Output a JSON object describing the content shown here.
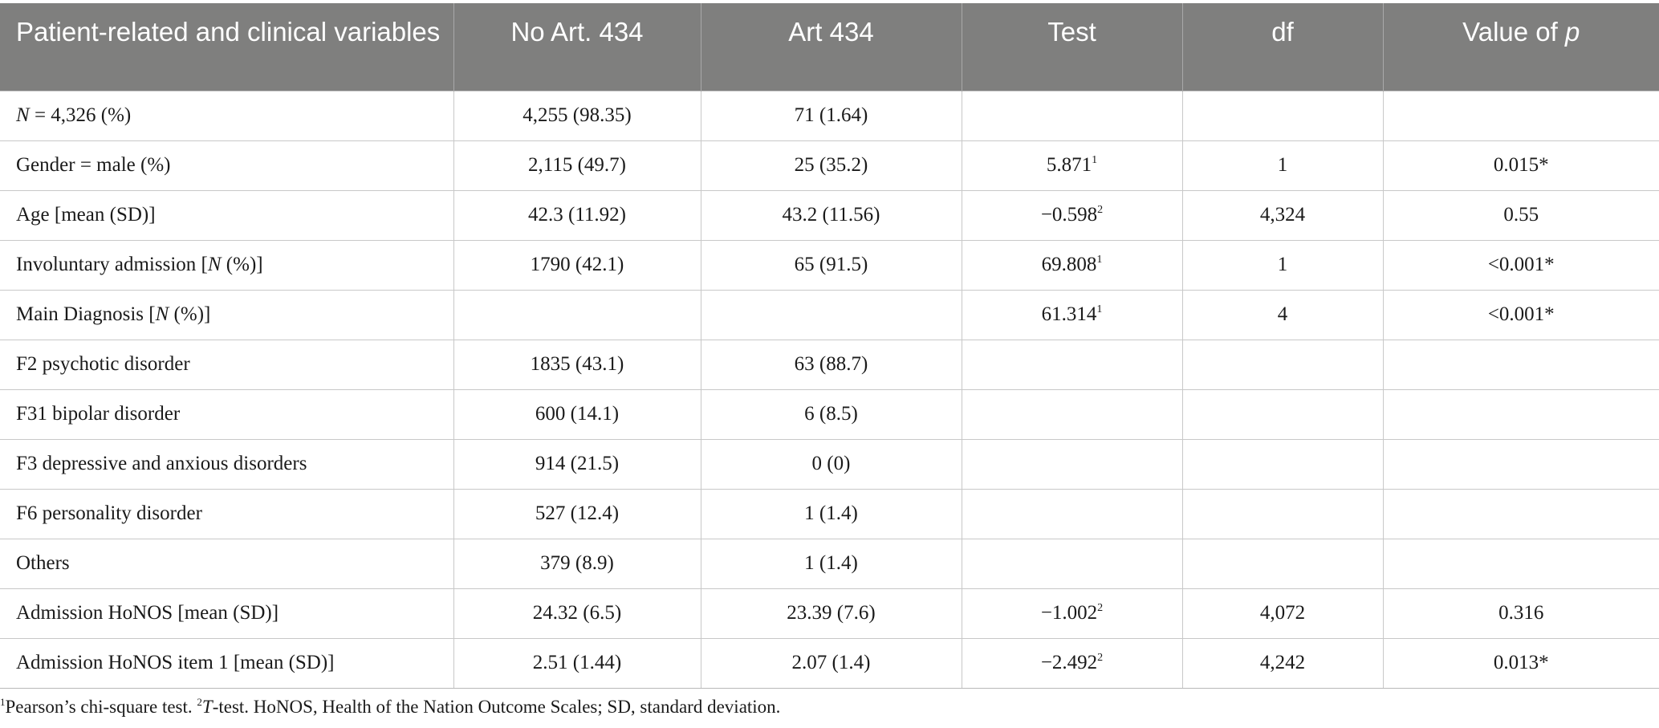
{
  "table": {
    "header": {
      "variables": "Patient-related and clinical variables",
      "no_art": "No Art. 434",
      "art": "Art 434",
      "test": "Test",
      "df": "df",
      "p_prefix": "Value of ",
      "p_symbol": "p"
    },
    "rows": [
      {
        "lead": "N",
        "label": " = 4,326 (%)",
        "no_art": "4,255 (98.35)",
        "art": "71 (1.64)",
        "test": "",
        "test_sup": "",
        "df": "",
        "p": ""
      },
      {
        "lead": "",
        "label": "Gender = male (%)",
        "no_art": "2,115 (49.7)",
        "art": "25 (35.2)",
        "test": "5.871",
        "test_sup": "1",
        "df": "1",
        "p": "0.015*"
      },
      {
        "lead": "",
        "label": "Age [mean (SD)]",
        "no_art": "42.3 (11.92)",
        "art": "43.2 (11.56)",
        "test": "−0.598",
        "test_sup": "2",
        "df": "4,324",
        "p": "0.55"
      },
      {
        "lead": "",
        "label": "Involuntary admission [",
        "label_it": "N",
        "label_end": " (%)]",
        "no_art": "1790 (42.1)",
        "art": "65 (91.5)",
        "test": "69.808",
        "test_sup": "1",
        "df": "1",
        "p": "<0.001*"
      },
      {
        "lead": "",
        "label": "Main Diagnosis [",
        "label_it": "N",
        "label_end": " (%)]",
        "no_art": "",
        "art": "",
        "test": "61.314",
        "test_sup": "1",
        "df": "4",
        "p": "<0.001*"
      },
      {
        "lead": "",
        "label": "F2 psychotic disorder",
        "no_art": "1835 (43.1)",
        "art": "63 (88.7)",
        "test": "",
        "test_sup": "",
        "df": "",
        "p": ""
      },
      {
        "lead": "",
        "label": "F31 bipolar disorder",
        "no_art": "600 (14.1)",
        "art": "6 (8.5)",
        "test": "",
        "test_sup": "",
        "df": "",
        "p": ""
      },
      {
        "lead": "",
        "label": "F3 depressive and anxious disorders",
        "no_art": "914 (21.5)",
        "art": "0 (0)",
        "test": "",
        "test_sup": "",
        "df": "",
        "p": ""
      },
      {
        "lead": "",
        "label": "F6 personality disorder",
        "no_art": "527 (12.4)",
        "art": "1 (1.4)",
        "test": "",
        "test_sup": "",
        "df": "",
        "p": ""
      },
      {
        "lead": "",
        "label": "Others",
        "no_art": "379 (8.9)",
        "art": "1 (1.4)",
        "test": "",
        "test_sup": "",
        "df": "",
        "p": ""
      },
      {
        "lead": "",
        "label": "Admission HoNOS [mean (SD)]",
        "no_art": "24.32 (6.5)",
        "art": "23.39 (7.6)",
        "test": "−1.002",
        "test_sup": "2",
        "df": "4,072",
        "p": "0.316"
      },
      {
        "lead": "",
        "label": "Admission HoNOS item 1 [mean (SD)]",
        "no_art": "2.51 (1.44)",
        "art": "2.07 (1.4)",
        "test": "−2.492",
        "test_sup": "2",
        "df": "4,242",
        "p": "0.013*"
      }
    ]
  },
  "footnote": {
    "sup1": "1",
    "text1": "Pearson’s chi-square test. ",
    "sup2": "2",
    "t_italic": "T",
    "text2": "-test. HoNOS, Health of the Nation Outcome Scales; SD, standard deviation."
  }
}
